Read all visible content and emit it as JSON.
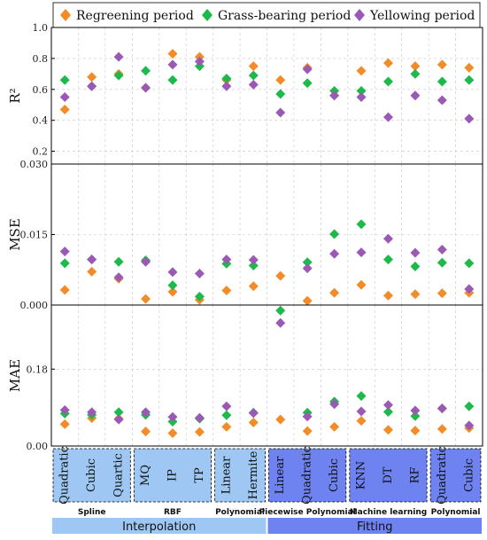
{
  "colors": {
    "regreening": "#F28C28",
    "grass_bearing": "#1DB94A",
    "yellowing": "#9B59B6",
    "interp_box": "#9EC8F3",
    "fit_box": "#6F83F0",
    "interp_band": "#9EC8F3",
    "fit_band": "#6F83F0"
  },
  "legend": [
    "Regreening period",
    "Grass-bearing period",
    "Yellowing period"
  ],
  "methods": [
    "Quadratic",
    "Cubic",
    "Quartic",
    "MQ",
    "IP",
    "TP",
    "Linear",
    "Hermite",
    "Linear",
    "Quadratic",
    "Cubic",
    "KNN",
    "DT",
    "RF",
    "Quadratic",
    "Cubic"
  ],
  "method_groups": [
    {
      "label": "Spline",
      "from": 0,
      "to": 2
    },
    {
      "label": "RBF",
      "from": 3,
      "to": 5
    },
    {
      "label": "Polynomial",
      "from": 6,
      "to": 7
    },
    {
      "label": "Piecewise Polynomial",
      "from": 8,
      "to": 10
    },
    {
      "label": "Machine learning",
      "from": 11,
      "to": 13
    },
    {
      "label": "Polynomial",
      "from": 14,
      "to": 15
    }
  ],
  "bands": [
    {
      "label": "Interpolation",
      "from": 0,
      "to": 7,
      "kind": "interp"
    },
    {
      "label": "Fitting",
      "from": 8,
      "to": 15,
      "kind": "fit"
    }
  ],
  "chart_data": [
    {
      "type": "scatter",
      "ylabel": "R²",
      "ylim": [
        0.1,
        1.0
      ],
      "yticks": [
        "0.2",
        "0.4",
        "0.6",
        "0.8",
        "1.0"
      ],
      "ytick_values": [
        0.2,
        0.4,
        0.6,
        0.8,
        1.0
      ],
      "series": [
        {
          "name": "Regreening period",
          "values": [
            0.47,
            0.68,
            0.7,
            0.61,
            0.83,
            0.81,
            0.66,
            0.75,
            0.66,
            0.74,
            0.56,
            0.72,
            0.77,
            0.75,
            0.76,
            0.74
          ]
        },
        {
          "name": "Grass-bearing period",
          "values": [
            0.66,
            0.62,
            0.69,
            0.72,
            0.66,
            0.75,
            0.67,
            0.69,
            0.57,
            0.64,
            0.59,
            0.59,
            0.65,
            0.7,
            0.65,
            0.66
          ]
        },
        {
          "name": "Yellowing period",
          "values": [
            0.55,
            0.62,
            0.81,
            0.61,
            0.76,
            0.78,
            0.62,
            0.63,
            0.45,
            0.73,
            0.56,
            0.55,
            0.42,
            0.56,
            0.53,
            0.41
          ]
        }
      ]
    },
    {
      "type": "scatter",
      "ylabel": "MSE",
      "ylim": [
        0.0,
        0.03
      ],
      "yticks": [
        "0.000",
        "0.015",
        "0.030"
      ],
      "ytick_values": [
        0.0,
        0.015,
        0.03
      ],
      "series": [
        {
          "name": "Regreening period",
          "values": [
            0.0032,
            0.0071,
            0.0056,
            0.0013,
            0.0028,
            0.0011,
            0.0031,
            0.004,
            0.0062,
            0.0009,
            0.0026,
            0.0043,
            0.002,
            0.0023,
            0.0025,
            0.0026
          ]
        },
        {
          "name": "Grass-bearing period",
          "values": [
            0.0089,
            0.0097,
            0.0092,
            0.0095,
            0.0042,
            0.0018,
            0.0088,
            0.0084,
            null,
            0.0091,
            0.0151,
            0.0172,
            0.0097,
            0.0082,
            0.009,
            0.0089
          ]
        },
        {
          "name": "Yellowing period",
          "values": [
            0.0114,
            0.0097,
            0.0059,
            0.0092,
            0.007,
            0.0067,
            0.0097,
            0.0096,
            null,
            0.0078,
            0.0109,
            0.0112,
            0.0141,
            0.0111,
            0.0118,
            0.0034
          ]
        }
      ]
    },
    {
      "type": "scatter",
      "ylabel": "MAE",
      "ylim": [
        0.0,
        0.33
      ],
      "yticks": [
        "0.00",
        "0.18"
      ],
      "ytick_values": [
        0.0,
        0.18
      ],
      "series": [
        {
          "name": "Regreening period",
          "values": [
            0.051,
            0.065,
            0.064,
            0.034,
            0.03,
            0.033,
            0.045,
            0.055,
            0.062,
            0.035,
            0.045,
            0.059,
            0.038,
            0.036,
            0.04,
            0.042
          ]
        },
        {
          "name": "Grass-bearing period",
          "values": [
            0.076,
            0.073,
            0.079,
            0.073,
            0.057,
            0.064,
            0.072,
            0.078,
            0.317,
            0.078,
            0.104,
            0.117,
            0.08,
            0.07,
            0.088,
            0.093
          ]
        },
        {
          "name": "Yellowing period",
          "values": [
            0.084,
            0.079,
            0.062,
            0.079,
            0.068,
            0.066,
            0.093,
            0.077,
            0.288,
            0.069,
            0.098,
            0.081,
            0.096,
            0.083,
            0.088,
            0.048
          ]
        }
      ]
    }
  ]
}
